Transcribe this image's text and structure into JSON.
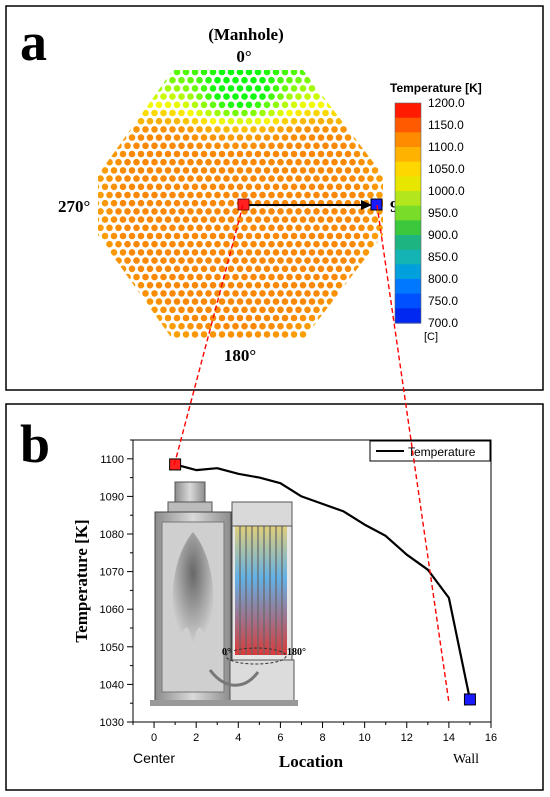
{
  "panel_a": {
    "letter": "a",
    "top_label_1": "(Manhole)",
    "top_label_2": "0°",
    "left_label": "270°",
    "right_label": "90°",
    "bottom_label": "180°",
    "colorbar": {
      "title": "Temperature  [K]",
      "unit": "[C]",
      "ticks": [
        "1200.0",
        "1150.0",
        "1100.0",
        "1050.0",
        "1000.0",
        "950.0",
        "900.0",
        "850.0",
        "800.0",
        "750.0",
        "700.0"
      ],
      "colors": [
        "#ff1a00",
        "#ff5a00",
        "#ff8c00",
        "#ffb300",
        "#ffd700",
        "#e6e600",
        "#b4e61e",
        "#78dc28",
        "#3cc83c",
        "#1eb482",
        "#14b4b4",
        "#00a0dc",
        "#0078ff",
        "#0050ff",
        "#0028f0"
      ]
    }
  },
  "panel_b": {
    "letter": "b",
    "inset_label_left": "0°",
    "inset_label_right": "180°"
  },
  "chart_data": {
    "type": "line",
    "title": "",
    "xlabel": "Location",
    "ylabel": "Temperature [K]",
    "xlim": [
      -1,
      16
    ],
    "ylim": [
      1030,
      1105
    ],
    "xticks": [
      0,
      2,
      4,
      6,
      8,
      10,
      12,
      14,
      16
    ],
    "yticks": [
      1030,
      1040,
      1050,
      1060,
      1070,
      1080,
      1090,
      1100
    ],
    "x_end_labels": {
      "left": "Center",
      "right": "Wall"
    },
    "legend_position": "top-right",
    "series": [
      {
        "name": "Temperature",
        "color": "#000000",
        "x": [
          1,
          2,
          3,
          4,
          5,
          6,
          7,
          8,
          9,
          10,
          11,
          12,
          13,
          14,
          15
        ],
        "y": [
          1098.5,
          1097,
          1097.5,
          1096,
          1095,
          1093.5,
          1090,
          1088,
          1086,
          1082.5,
          1079.5,
          1074.5,
          1070.5,
          1063,
          1036
        ]
      }
    ],
    "markers": [
      {
        "x": 1,
        "y": 1098.5,
        "color": "#ff2020"
      },
      {
        "x": 15,
        "y": 1036,
        "color": "#1a1aff"
      }
    ]
  }
}
